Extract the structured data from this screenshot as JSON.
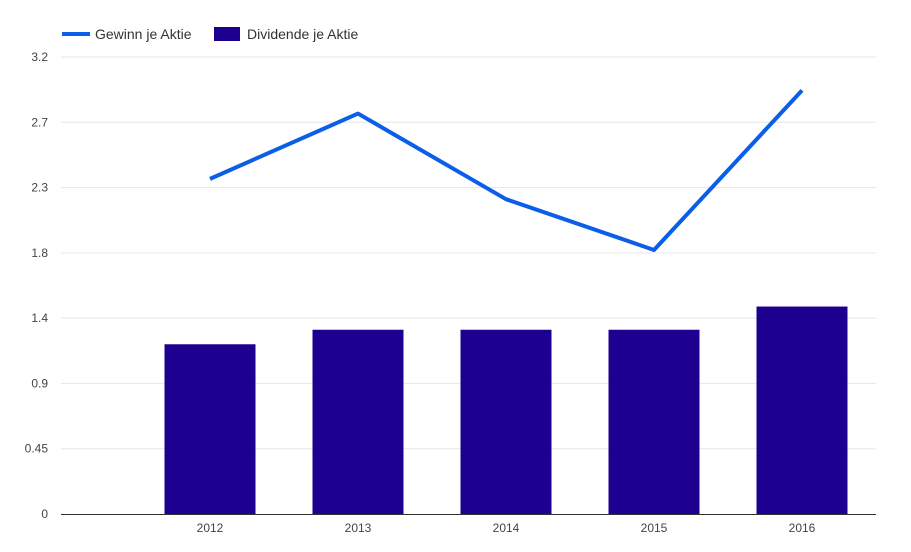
{
  "chart_data": {
    "type": "bar",
    "categories": [
      "2012",
      "2013",
      "2014",
      "2015",
      "2016"
    ],
    "series": [
      {
        "name": "Gewinn je Aktie",
        "type": "line",
        "color": "#0a5ee8",
        "values": [
          2.31,
          2.76,
          2.17,
          1.82,
          2.92
        ]
      },
      {
        "name": "Dividende je Aktie",
        "type": "bar",
        "color": "#1d008f",
        "values": [
          1.17,
          1.27,
          1.27,
          1.27,
          1.43
        ]
      }
    ],
    "y_ticks": [
      "0",
      "0.45",
      "0.9",
      "1.4",
      "1.8",
      "2.3",
      "2.7",
      "3.2"
    ],
    "ylim": [
      0,
      3.15
    ],
    "grid": true,
    "legend_position": "top-left",
    "title": "",
    "xlabel": "",
    "ylabel": ""
  }
}
